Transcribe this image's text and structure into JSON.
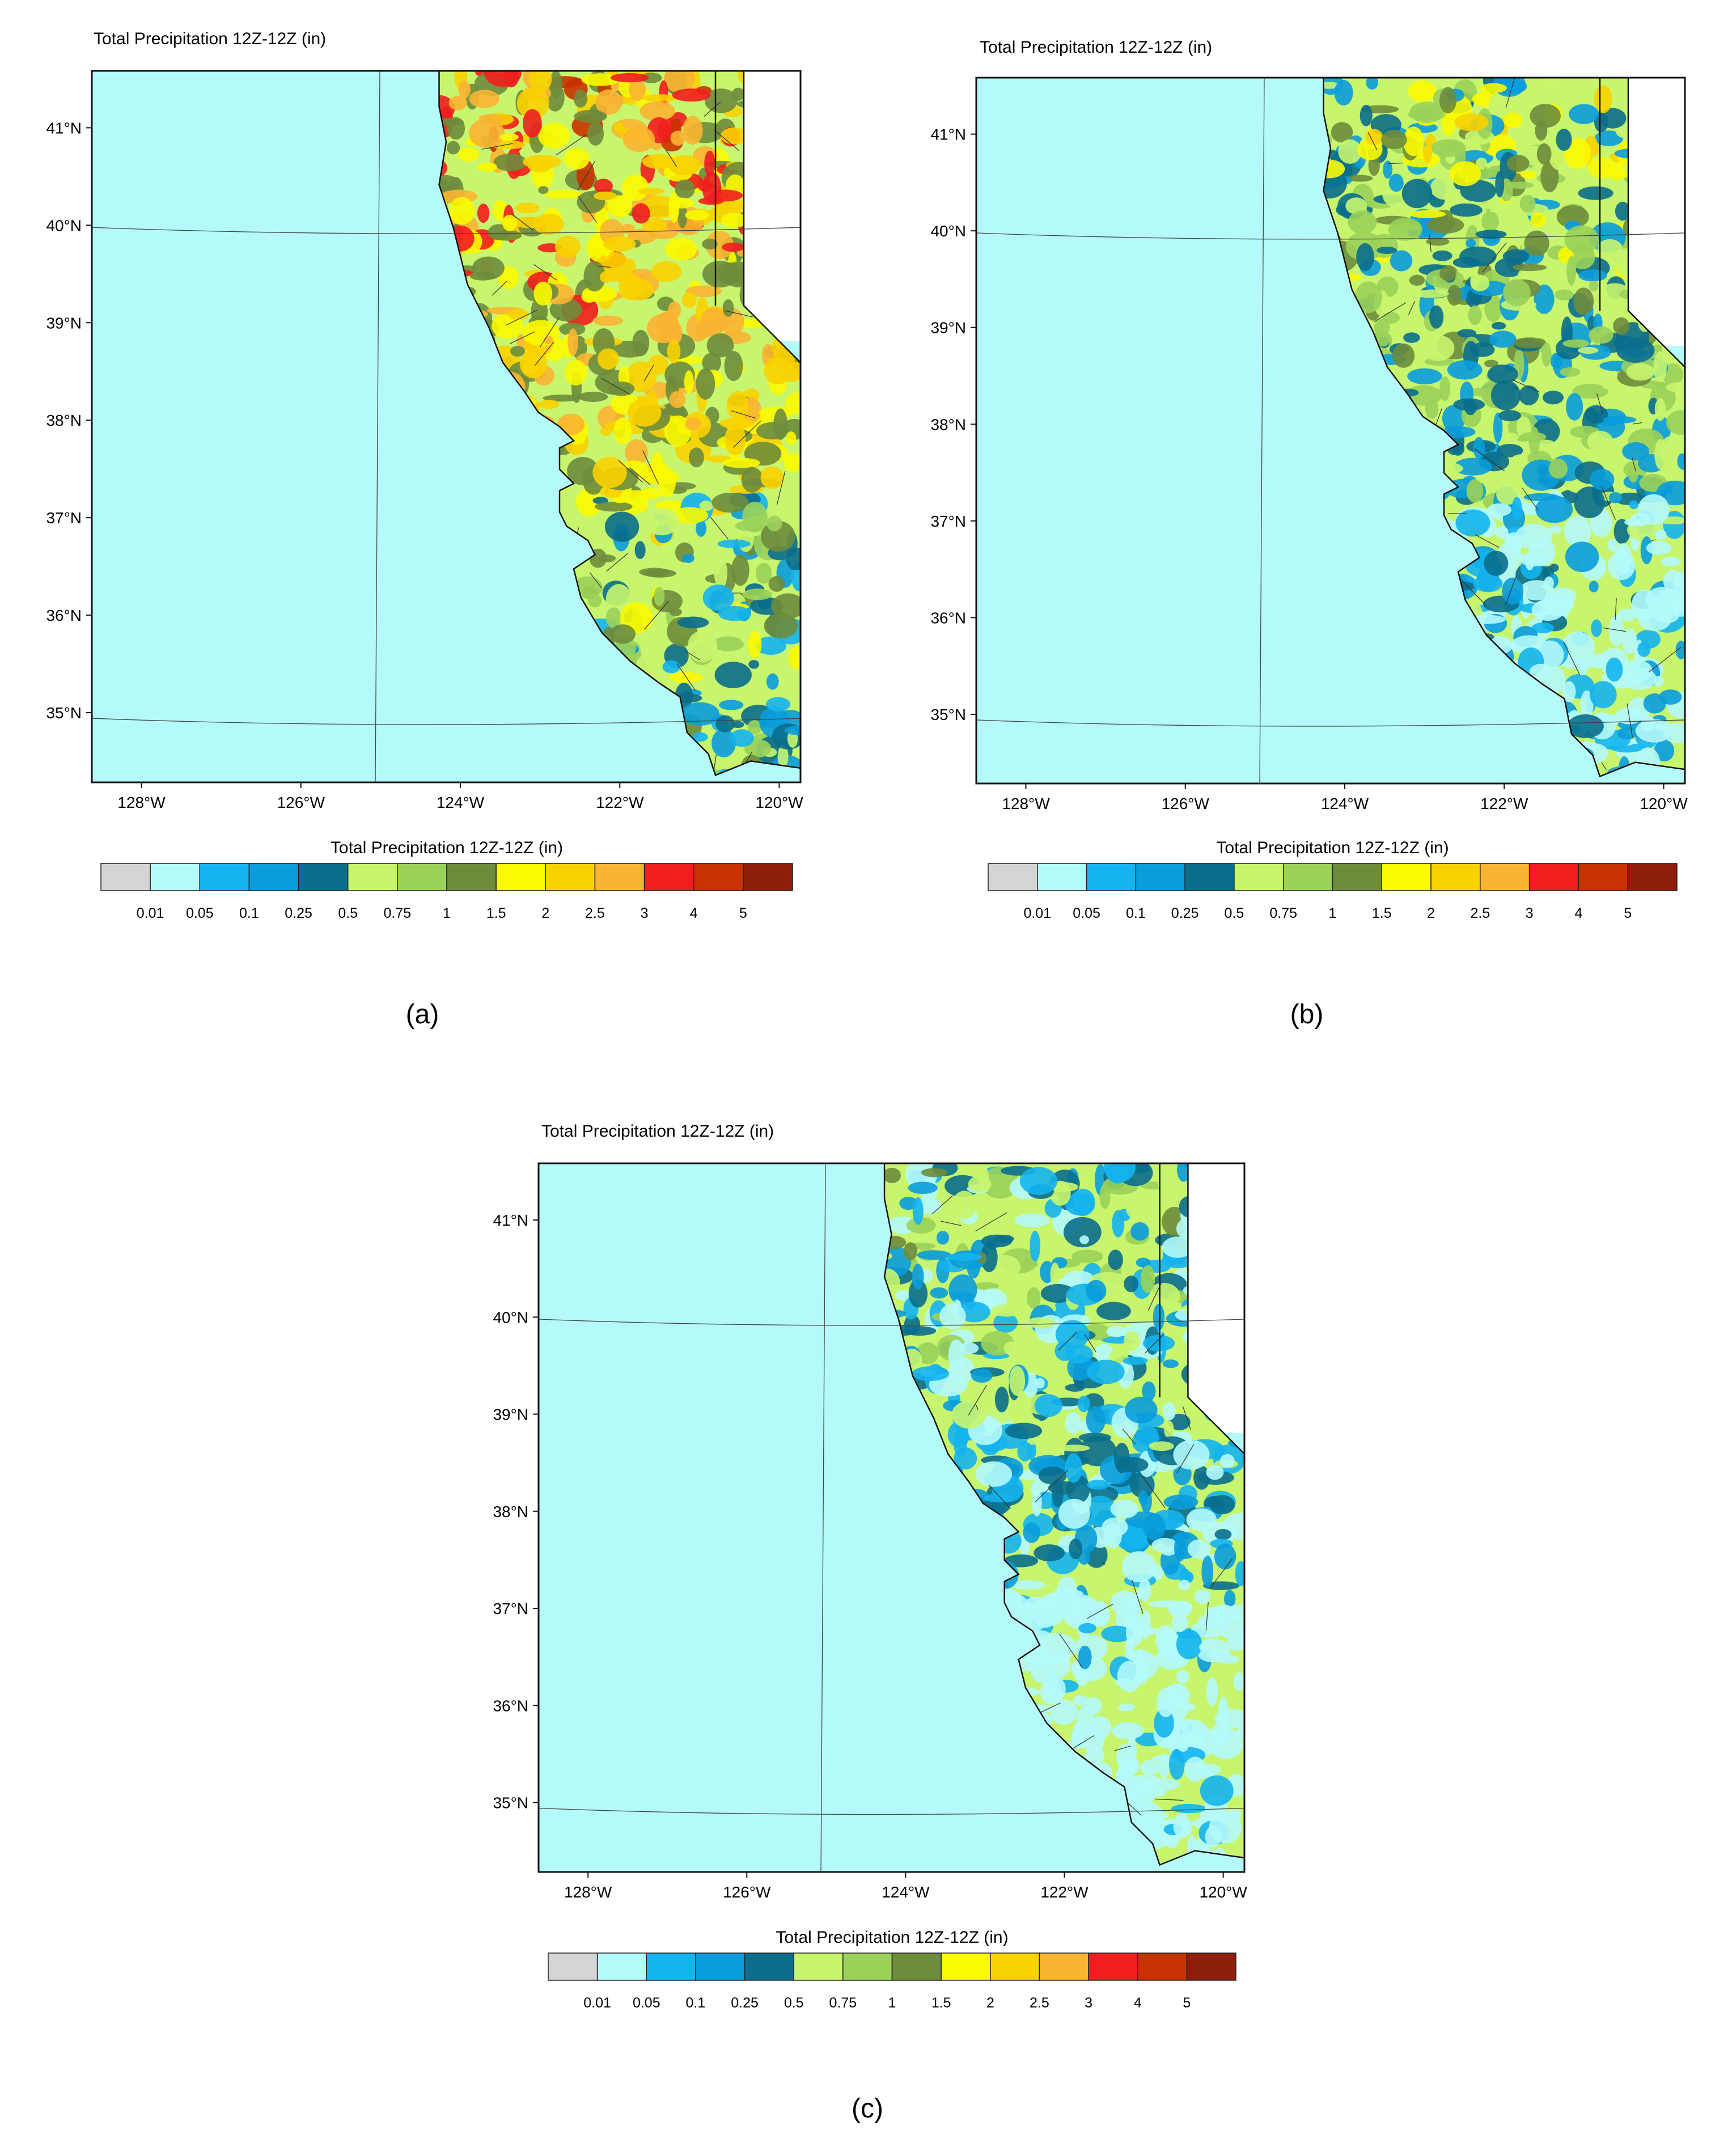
{
  "panels": [
    {
      "id": "a",
      "title": "Total Precipitation 12Z-12Z   (in)",
      "colorbar_title": "Total Precipitation 12Z-12Z  (in)",
      "caption_letter": "a",
      "intensity": "heavy"
    },
    {
      "id": "b",
      "title": "Total Precipitation 12Z-12Z   (in)",
      "colorbar_title": "Total Precipitation 12Z-12Z  (in)",
      "caption_letter": "b",
      "intensity": "moderate"
    },
    {
      "id": "c",
      "title": "Total Precipitation 12Z-12Z   (in)",
      "colorbar_title": "Total Precipitation 12Z-12Z  (in)",
      "caption_letter": "c",
      "intensity": "light"
    }
  ],
  "lat_labels": [
    "41°N",
    "40°N",
    "39°N",
    "38°N",
    "37°N",
    "36°N",
    "35°N"
  ],
  "lon_labels": [
    "128°W",
    "126°W",
    "124°W",
    "122°W",
    "120°W"
  ],
  "colorbar": {
    "colors": [
      "#d4d4d4",
      "#b4fafa",
      "#14b4f0",
      "#0a9cdc",
      "#0a6e8c",
      "#c8f56e",
      "#9bd25a",
      "#6e8c3c",
      "#fafa00",
      "#fad200",
      "#fab432",
      "#f01e1e",
      "#c83200",
      "#8c1e0a"
    ],
    "tick_labels": [
      "0.01",
      "0.05",
      "0.1",
      "0.25",
      "0.5",
      "0.75",
      "1",
      "1.5",
      "2",
      "2.5",
      "3",
      "4",
      "5"
    ]
  },
  "ocean_color": "#b4fafa",
  "land_outside_color": "#ffffff"
}
